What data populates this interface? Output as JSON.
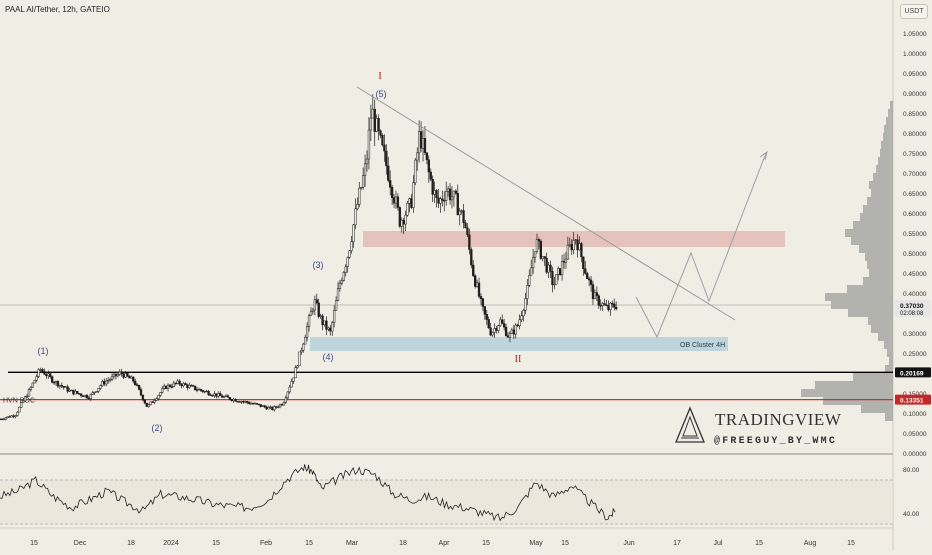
{
  "header": {
    "symbol_title": "PAAL AI/Tether, 12h, GATEIO",
    "currency": "USDT"
  },
  "watermark": {
    "brand": "TRADINGVIEW",
    "handle": "@FREEGUY_BY_WMC"
  },
  "colors": {
    "background": "#f0ede4",
    "candle": "#1e1e1e",
    "price_line_black": "#000000",
    "price_line_red": "#d32f2f",
    "resistance_zone": "#e2b3ad",
    "support_zone": "#b7d2d9",
    "wave_label": "#3a4c8a",
    "cycle_label": "#b71c1c",
    "volume_profile": "#9e9e9e",
    "trendline": "#9a9a9a",
    "rsi_line": "#222222"
  },
  "chart_data": {
    "type": "candlestick",
    "interval": "12h",
    "price_axis_ticks": [
      "1.05000",
      "1.00000",
      "0.95000",
      "0.90000",
      "0.85000",
      "0.80000",
      "0.75000",
      "0.70000",
      "0.65000",
      "0.60000",
      "0.55000",
      "0.50000",
      "0.45000",
      "0.40000",
      "0.35000",
      "0.30000",
      "0.25000",
      "0.20000",
      "0.15000",
      "0.10000",
      "0.05000",
      "0.00000"
    ],
    "price_badges": [
      {
        "label": "0.37030",
        "sublabel": "02:08:08",
        "value": 0.3703,
        "color": "#e6e6e6",
        "text_color": "#111111"
      },
      {
        "label": "0.20169",
        "value": 0.20169,
        "color": "#111111",
        "text_color": "#ffffff"
      },
      {
        "label": "0.13351",
        "value": 0.13351,
        "color": "#c62828",
        "text_color": "#ffffff"
      }
    ],
    "time_axis_ticks": [
      "15",
      "Dec",
      "18",
      "2024",
      "15",
      "Feb",
      "15",
      "Mar",
      "18",
      "Apr",
      "15",
      "May",
      "15",
      "Jun",
      "17",
      "Jul",
      "15",
      "Aug",
      "15"
    ],
    "price_keypoints": [
      {
        "t": 0,
        "p": 0.085
      },
      {
        "t": 0.017,
        "p": 0.095
      },
      {
        "t": 0.035,
        "p": 0.165
      },
      {
        "t": 0.045,
        "p": 0.21
      },
      {
        "t": 0.06,
        "p": 0.18
      },
      {
        "t": 0.078,
        "p": 0.155
      },
      {
        "t": 0.1,
        "p": 0.14
      },
      {
        "t": 0.115,
        "p": 0.175
      },
      {
        "t": 0.135,
        "p": 0.2
      },
      {
        "t": 0.15,
        "p": 0.18
      },
      {
        "t": 0.165,
        "p": 0.115
      },
      {
        "t": 0.185,
        "p": 0.165
      },
      {
        "t": 0.2,
        "p": 0.175
      },
      {
        "t": 0.22,
        "p": 0.16
      },
      {
        "t": 0.25,
        "p": 0.14
      },
      {
        "t": 0.28,
        "p": 0.125
      },
      {
        "t": 0.305,
        "p": 0.11
      },
      {
        "t": 0.317,
        "p": 0.125
      },
      {
        "t": 0.33,
        "p": 0.2
      },
      {
        "t": 0.342,
        "p": 0.3
      },
      {
        "t": 0.352,
        "p": 0.38
      },
      {
        "t": 0.36,
        "p": 0.33
      },
      {
        "t": 0.37,
        "p": 0.3
      },
      {
        "t": 0.38,
        "p": 0.42
      },
      {
        "t": 0.39,
        "p": 0.5
      },
      {
        "t": 0.4,
        "p": 0.62
      },
      {
        "t": 0.41,
        "p": 0.72
      },
      {
        "t": 0.416,
        "p": 0.86
      },
      {
        "t": 0.425,
        "p": 0.78
      },
      {
        "t": 0.435,
        "p": 0.7
      },
      {
        "t": 0.448,
        "p": 0.58
      },
      {
        "t": 0.46,
        "p": 0.62
      },
      {
        "t": 0.47,
        "p": 0.8
      },
      {
        "t": 0.48,
        "p": 0.7
      },
      {
        "t": 0.49,
        "p": 0.62
      },
      {
        "t": 0.5,
        "p": 0.66
      },
      {
        "t": 0.51,
        "p": 0.63
      },
      {
        "t": 0.52,
        "p": 0.58
      },
      {
        "t": 0.53,
        "p": 0.45
      },
      {
        "t": 0.54,
        "p": 0.36
      },
      {
        "t": 0.55,
        "p": 0.3
      },
      {
        "t": 0.56,
        "p": 0.33
      },
      {
        "t": 0.57,
        "p": 0.29
      },
      {
        "t": 0.58,
        "p": 0.32
      },
      {
        "t": 0.59,
        "p": 0.4
      },
      {
        "t": 0.6,
        "p": 0.53
      },
      {
        "t": 0.61,
        "p": 0.48
      },
      {
        "t": 0.62,
        "p": 0.42
      },
      {
        "t": 0.635,
        "p": 0.5
      },
      {
        "t": 0.645,
        "p": 0.54
      },
      {
        "t": 0.655,
        "p": 0.46
      },
      {
        "t": 0.665,
        "p": 0.39
      },
      {
        "t": 0.68,
        "p": 0.36
      },
      {
        "t": 0.69,
        "p": 0.37
      }
    ],
    "rsi": {
      "ticks": [
        "80.00",
        "40.00"
      ],
      "upper_band": 70,
      "lower_band": 30,
      "keypoints": [
        {
          "t": 0,
          "v": 55
        },
        {
          "t": 0.02,
          "v": 60
        },
        {
          "t": 0.04,
          "v": 70
        },
        {
          "t": 0.06,
          "v": 55
        },
        {
          "t": 0.08,
          "v": 45
        },
        {
          "t": 0.1,
          "v": 52
        },
        {
          "t": 0.12,
          "v": 60
        },
        {
          "t": 0.14,
          "v": 50
        },
        {
          "t": 0.16,
          "v": 42
        },
        {
          "t": 0.18,
          "v": 57
        },
        {
          "t": 0.2,
          "v": 55
        },
        {
          "t": 0.22,
          "v": 52
        },
        {
          "t": 0.24,
          "v": 48
        },
        {
          "t": 0.26,
          "v": 46
        },
        {
          "t": 0.28,
          "v": 45
        },
        {
          "t": 0.3,
          "v": 52
        },
        {
          "t": 0.32,
          "v": 70
        },
        {
          "t": 0.34,
          "v": 82
        },
        {
          "t": 0.35,
          "v": 78
        },
        {
          "t": 0.36,
          "v": 62
        },
        {
          "t": 0.38,
          "v": 72
        },
        {
          "t": 0.4,
          "v": 80
        },
        {
          "t": 0.42,
          "v": 75
        },
        {
          "t": 0.44,
          "v": 58
        },
        {
          "t": 0.46,
          "v": 52
        },
        {
          "t": 0.48,
          "v": 55
        },
        {
          "t": 0.5,
          "v": 48
        },
        {
          "t": 0.52,
          "v": 45
        },
        {
          "t": 0.54,
          "v": 40
        },
        {
          "t": 0.56,
          "v": 35
        },
        {
          "t": 0.58,
          "v": 45
        },
        {
          "t": 0.6,
          "v": 68
        },
        {
          "t": 0.62,
          "v": 55
        },
        {
          "t": 0.64,
          "v": 65
        },
        {
          "t": 0.66,
          "v": 50
        },
        {
          "t": 0.68,
          "v": 36
        },
        {
          "t": 0.69,
          "v": 42
        }
      ]
    },
    "annotations": {
      "waves": [
        "(1)",
        "(2)",
        "(3)",
        "(4)",
        "(5)"
      ],
      "cycles": [
        "I",
        "II"
      ],
      "hvn_poc": "HVN POC",
      "ob_cluster": "OB Cluster 4H",
      "resistance_zone": [
        0.515,
        0.555
      ],
      "support_zone": [
        0.255,
        0.29
      ],
      "forecast_path": [
        0.39,
        0.29,
        0.5,
        0.38,
        0.75
      ]
    }
  }
}
